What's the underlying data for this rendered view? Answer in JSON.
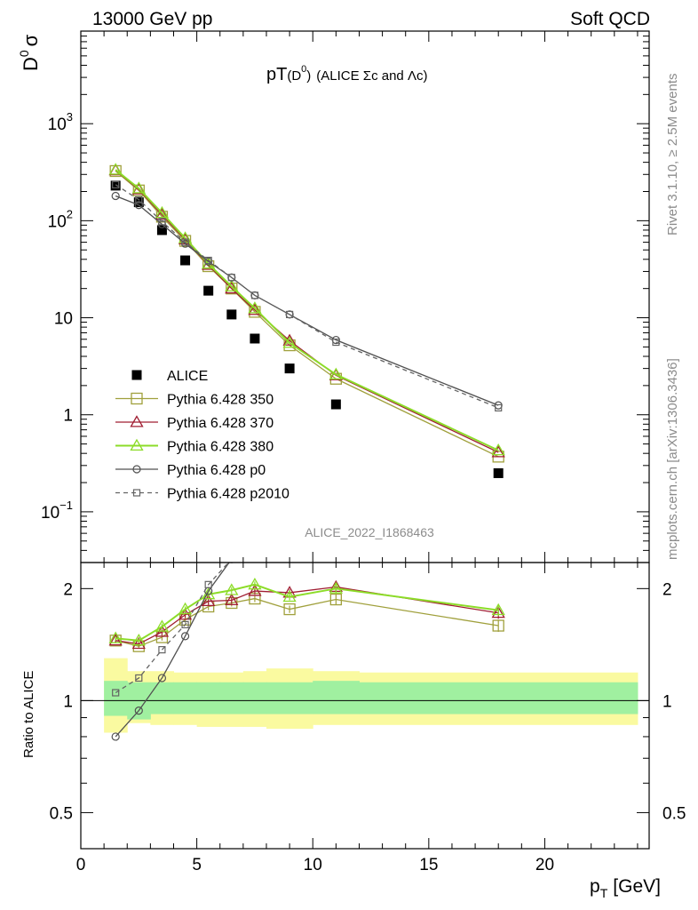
{
  "header": {
    "left": "13000 GeV pp",
    "right": "Soft QCD"
  },
  "side_labels": {
    "rivet": "Rivet 3.1.10, ≥ 2.5M events",
    "mcplots": "mcplots.cern.ch [arXiv:1306.3436]"
  },
  "plot_title": {
    "main": "pT",
    "paren_open": "(D",
    "sup": "0",
    "paren_close": ")",
    "extra": "(ALICE Σc and Λc)"
  },
  "analysis_id": "ALICE_2022_I1868463",
  "colors": {
    "ALICE": "#000000",
    "350": "#a0a03c",
    "370": "#a01e32",
    "380": "#8cdc28",
    "p0": "#505050",
    "p2010": "#646464",
    "band_inner": "#a0f0a0",
    "band_outer": "#fafaa0"
  },
  "chart_data": [
    {
      "type": "scatter",
      "panel": "main",
      "ylabel": "D⁰ σ",
      "yscale": "log",
      "ylim": [
        0.03,
        9000
      ],
      "xlim": [
        0,
        24.5
      ],
      "y_ticks": [
        {
          "value": 0.1,
          "base": "10",
          "exp": "−1"
        },
        {
          "value": 1,
          "base": "1",
          "exp": ""
        },
        {
          "value": 10,
          "base": "10",
          "exp": ""
        },
        {
          "value": 100,
          "base": "10",
          "exp": "2"
        },
        {
          "value": 1000,
          "base": "10",
          "exp": "3"
        }
      ],
      "series": [
        {
          "name": "ALICE",
          "key": "ALICE",
          "marker": "filled-square",
          "line": "none",
          "x": [
            1.5,
            2.5,
            3.5,
            4.5,
            5.5,
            6.5,
            7.5,
            9,
            11,
            18
          ],
          "y": [
            230,
            155,
            80,
            39,
            19,
            10.8,
            6.1,
            3.0,
            1.28,
            0.25
          ]
        },
        {
          "name": "Pythia 6.428 350",
          "key": "350",
          "marker": "open-square",
          "line": "solid",
          "x": [
            1.5,
            2.5,
            3.5,
            4.5,
            5.5,
            6.5,
            7.5,
            9,
            11,
            18
          ],
          "y": [
            325,
            205,
            110,
            62,
            34,
            20,
            11.5,
            5.2,
            2.35,
            0.37
          ]
        },
        {
          "name": "Pythia 6.428 370",
          "key": "370",
          "marker": "open-triangle",
          "line": "solid",
          "x": [
            1.5,
            2.5,
            3.5,
            4.5,
            5.5,
            6.5,
            7.5,
            9,
            11,
            18
          ],
          "y": [
            330,
            210,
            115,
            64,
            35,
            20,
            12,
            5.8,
            2.55,
            0.41
          ]
        },
        {
          "name": "Pythia 6.428 380",
          "key": "380",
          "marker": "open-triangle",
          "line": "solid",
          "x": [
            1.5,
            2.5,
            3.5,
            4.5,
            5.5,
            6.5,
            7.5,
            9,
            11,
            18
          ],
          "y": [
            335,
            215,
            120,
            66,
            36,
            21,
            12.5,
            5.5,
            2.6,
            0.43
          ]
        },
        {
          "name": "Pythia 6.428 p0",
          "key": "p0",
          "marker": "open-circle",
          "line": "solid",
          "x": [
            1.5,
            2.5,
            3.5,
            4.5,
            5.5,
            6.5,
            7.5,
            9,
            11,
            18
          ],
          "y": [
            180,
            145,
            92,
            58,
            38,
            26,
            17,
            10.8,
            5.9,
            1.25
          ]
        },
        {
          "name": "Pythia 6.428 p2010",
          "key": "p2010",
          "marker": "open-square-small",
          "line": "dashed",
          "x": [
            1.5,
            2.5,
            3.5,
            4.5,
            5.5,
            6.5,
            7.5,
            9,
            11,
            18
          ],
          "y": [
            235,
            165,
            98,
            60,
            39,
            26,
            17,
            10.8,
            5.6,
            1.18
          ]
        }
      ]
    },
    {
      "type": "line",
      "panel": "ratio",
      "ylabel": "Ratio to ALICE",
      "xlabel": "pₜ [GeV]",
      "xlabel_main": "p",
      "xlabel_sub": "T",
      "xlabel_unit": "[GeV]",
      "yscale": "log",
      "ylim": [
        0.4,
        2.35
      ],
      "xlim": [
        0,
        24.5
      ],
      "x_ticks": [
        0,
        5,
        10,
        15,
        20
      ],
      "y_ticks": [
        {
          "value": 0.5,
          "label": "0.5"
        },
        {
          "value": 1,
          "label": "1"
        },
        {
          "value": 2,
          "label": "2"
        }
      ],
      "bands": {
        "edges": [
          1,
          2,
          3,
          4,
          5,
          6,
          7,
          8,
          10,
          12,
          24
        ],
        "inner": [
          [
            0.91,
            1.13
          ],
          [
            0.89,
            1.12
          ],
          [
            0.92,
            1.12
          ],
          [
            0.92,
            1.12
          ],
          [
            0.92,
            1.12
          ],
          [
            0.92,
            1.12
          ],
          [
            0.92,
            1.12
          ],
          [
            0.92,
            1.12
          ],
          [
            0.92,
            1.13
          ],
          [
            0.92,
            1.12
          ]
        ],
        "outer": [
          [
            0.82,
            1.3
          ],
          [
            0.87,
            1.2
          ],
          [
            0.86,
            1.2
          ],
          [
            0.86,
            1.19
          ],
          [
            0.85,
            1.19
          ],
          [
            0.85,
            1.19
          ],
          [
            0.85,
            1.2
          ],
          [
            0.84,
            1.22
          ],
          [
            0.86,
            1.2
          ],
          [
            0.86,
            1.19
          ]
        ]
      },
      "series": [
        {
          "name": "Pythia 6.428 350",
          "key": "350",
          "marker": "open-square",
          "line": "solid",
          "x": [
            1.5,
            2.5,
            3.5,
            4.5,
            5.5,
            6.5,
            7.5,
            9,
            11,
            18
          ],
          "y": [
            1.45,
            1.4,
            1.48,
            1.65,
            1.79,
            1.83,
            1.88,
            1.76,
            1.87,
            1.59
          ],
          "err": [
            0.02,
            0.02,
            0.03,
            0.03,
            0.04,
            0.04,
            0.04,
            0.04,
            0.06,
            0.06
          ]
        },
        {
          "name": "Pythia 6.428 370",
          "key": "370",
          "marker": "open-triangle",
          "line": "solid",
          "x": [
            1.5,
            2.5,
            3.5,
            4.5,
            5.5,
            6.5,
            7.5,
            9,
            11,
            18
          ],
          "y": [
            1.45,
            1.42,
            1.53,
            1.7,
            1.85,
            1.86,
            1.97,
            1.95,
            2.02,
            1.72
          ],
          "err": [
            0.02,
            0.02,
            0.03,
            0.03,
            0.04,
            0.04,
            0.04,
            0.04,
            0.06,
            0.06
          ]
        },
        {
          "name": "Pythia 6.428 380",
          "key": "380",
          "marker": "open-triangle",
          "line": "solid",
          "x": [
            1.5,
            2.5,
            3.5,
            4.5,
            5.5,
            6.5,
            7.5,
            9,
            11,
            18
          ],
          "y": [
            1.47,
            1.45,
            1.58,
            1.76,
            1.93,
            1.98,
            2.05,
            1.9,
            2.0,
            1.75
          ],
          "err": [
            0.02,
            0.02,
            0.03,
            0.03,
            0.04,
            0.04,
            0.04,
            0.04,
            0.06,
            0.06
          ]
        },
        {
          "name": "Pythia 6.428 p0",
          "key": "p0",
          "marker": "open-circle",
          "line": "solid",
          "x": [
            1.5,
            2.5,
            3.5,
            4.5,
            5.5,
            6.5,
            7.5
          ],
          "y": [
            0.8,
            0.94,
            1.15,
            1.49,
            1.97,
            2.4,
            2.8
          ],
          "err": []
        },
        {
          "name": "Pythia 6.428 p2010",
          "key": "p2010",
          "marker": "open-square-small",
          "line": "dashed",
          "x": [
            1.5,
            2.5,
            3.5,
            4.5,
            5.5,
            6.5,
            7.5
          ],
          "y": [
            1.05,
            1.15,
            1.37,
            1.6,
            2.05,
            2.4,
            2.8
          ],
          "err": []
        }
      ]
    }
  ]
}
